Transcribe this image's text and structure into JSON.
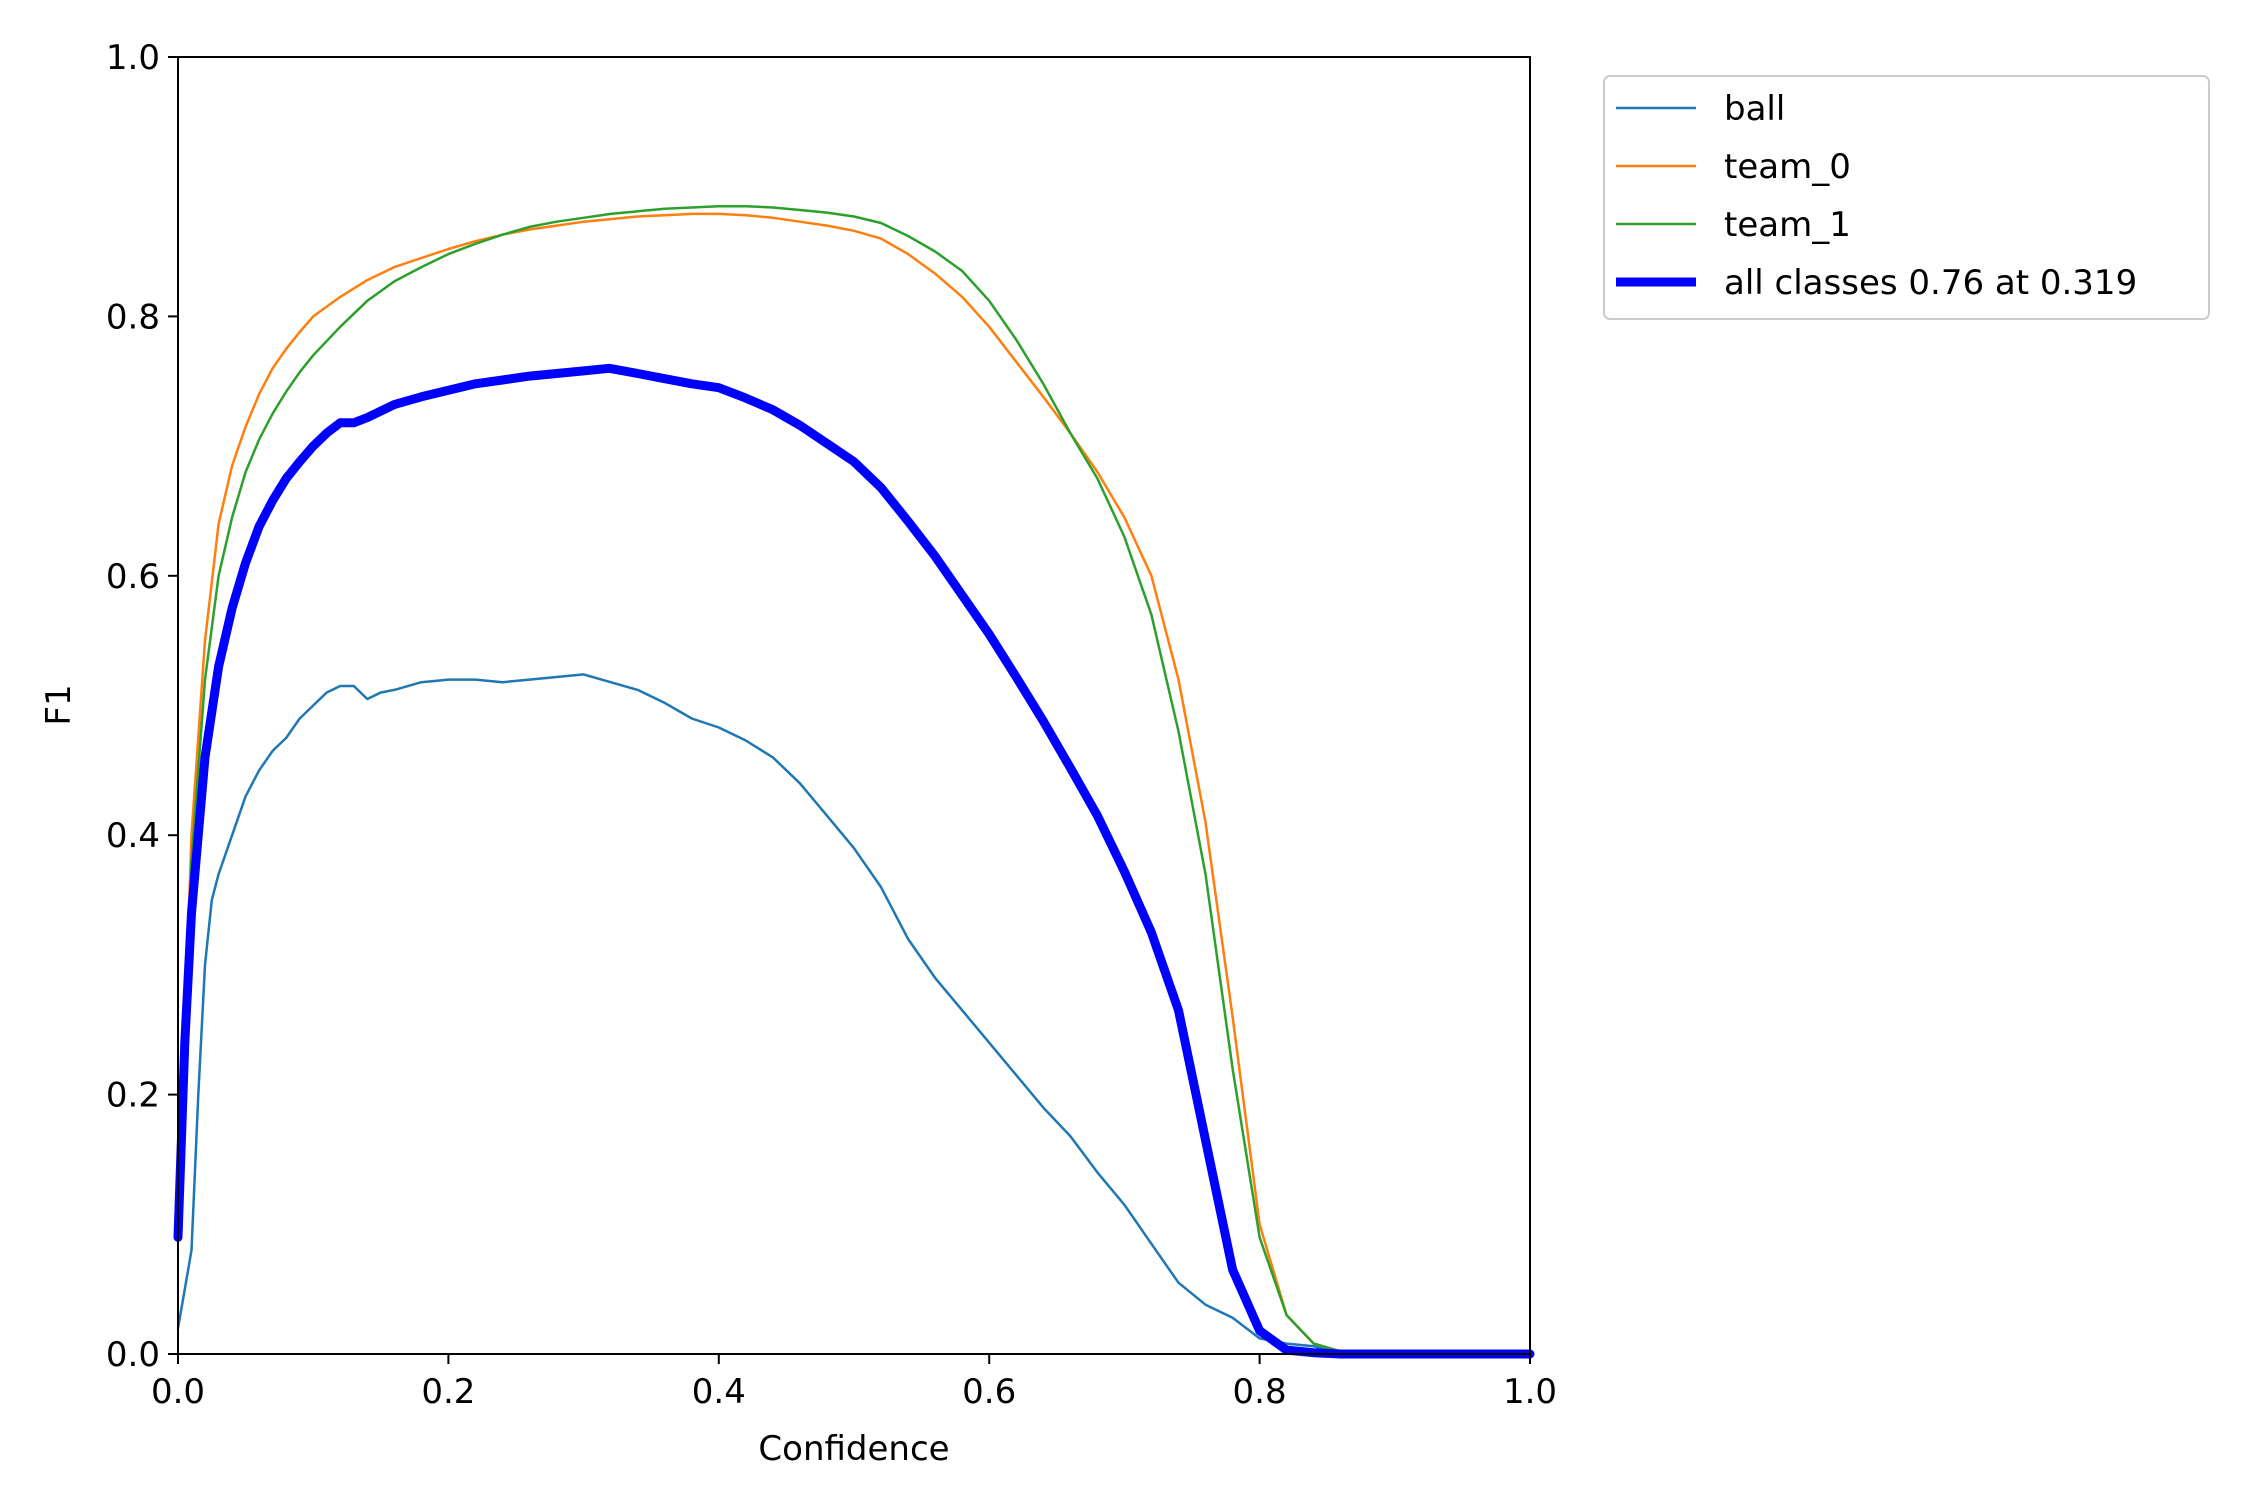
{
  "chart_data": {
    "type": "line",
    "title": "",
    "xlabel": "Confidence",
    "ylabel": "F1",
    "xlim": [
      0.0,
      1.0
    ],
    "ylim": [
      0.0,
      1.0
    ],
    "xticks": [
      "0.0",
      "0.2",
      "0.4",
      "0.6",
      "0.8",
      "1.0"
    ],
    "yticks": [
      "0.0",
      "0.2",
      "0.4",
      "0.6",
      "0.8",
      "1.0"
    ],
    "grid": false,
    "legend_position": "outside upper right",
    "series": [
      {
        "name": "ball",
        "color": "#1f77b4",
        "line_style": "thin",
        "x": [
          0.0,
          0.005,
          0.01,
          0.015,
          0.02,
          0.025,
          0.03,
          0.04,
          0.05,
          0.06,
          0.07,
          0.08,
          0.09,
          0.1,
          0.11,
          0.12,
          0.13,
          0.14,
          0.15,
          0.16,
          0.18,
          0.2,
          0.22,
          0.24,
          0.26,
          0.28,
          0.3,
          0.32,
          0.34,
          0.36,
          0.38,
          0.4,
          0.42,
          0.44,
          0.46,
          0.48,
          0.5,
          0.52,
          0.54,
          0.56,
          0.58,
          0.6,
          0.62,
          0.64,
          0.66,
          0.68,
          0.7,
          0.72,
          0.74,
          0.76,
          0.78,
          0.8,
          0.82,
          0.84,
          0.85,
          0.86,
          0.9,
          1.0
        ],
        "y": [
          0.02,
          0.05,
          0.08,
          0.2,
          0.3,
          0.35,
          0.37,
          0.4,
          0.43,
          0.45,
          0.465,
          0.475,
          0.49,
          0.5,
          0.51,
          0.515,
          0.515,
          0.505,
          0.51,
          0.512,
          0.518,
          0.52,
          0.52,
          0.518,
          0.52,
          0.522,
          0.524,
          0.518,
          0.512,
          0.502,
          0.49,
          0.483,
          0.473,
          0.46,
          0.44,
          0.415,
          0.39,
          0.36,
          0.32,
          0.29,
          0.265,
          0.24,
          0.215,
          0.19,
          0.168,
          0.14,
          0.115,
          0.085,
          0.055,
          0.038,
          0.028,
          0.012,
          0.008,
          0.006,
          0.003,
          0.001,
          0.0,
          0.0
        ]
      },
      {
        "name": "team_0",
        "color": "#ff7f0e",
        "line_style": "thin",
        "x": [
          0.0,
          0.01,
          0.02,
          0.03,
          0.04,
          0.05,
          0.06,
          0.07,
          0.08,
          0.09,
          0.1,
          0.12,
          0.14,
          0.16,
          0.18,
          0.2,
          0.22,
          0.24,
          0.26,
          0.28,
          0.3,
          0.32,
          0.34,
          0.36,
          0.38,
          0.4,
          0.42,
          0.44,
          0.46,
          0.48,
          0.5,
          0.52,
          0.54,
          0.56,
          0.58,
          0.6,
          0.62,
          0.64,
          0.66,
          0.68,
          0.7,
          0.72,
          0.74,
          0.76,
          0.78,
          0.8,
          0.82,
          0.84,
          0.86,
          0.88,
          0.9,
          0.95,
          1.0
        ],
        "y": [
          0.1,
          0.4,
          0.55,
          0.64,
          0.685,
          0.715,
          0.74,
          0.76,
          0.775,
          0.788,
          0.8,
          0.815,
          0.828,
          0.838,
          0.845,
          0.852,
          0.858,
          0.863,
          0.867,
          0.87,
          0.873,
          0.875,
          0.877,
          0.878,
          0.879,
          0.879,
          0.878,
          0.876,
          0.873,
          0.87,
          0.866,
          0.86,
          0.848,
          0.833,
          0.815,
          0.792,
          0.765,
          0.738,
          0.71,
          0.68,
          0.645,
          0.6,
          0.52,
          0.41,
          0.26,
          0.1,
          0.03,
          0.008,
          0.002,
          0.001,
          0.0,
          0.0,
          0.0
        ]
      },
      {
        "name": "team_1",
        "color": "#2ca02c",
        "line_style": "thin",
        "x": [
          0.0,
          0.01,
          0.02,
          0.03,
          0.04,
          0.05,
          0.06,
          0.07,
          0.08,
          0.09,
          0.1,
          0.12,
          0.14,
          0.16,
          0.18,
          0.2,
          0.22,
          0.24,
          0.26,
          0.28,
          0.3,
          0.32,
          0.34,
          0.36,
          0.38,
          0.4,
          0.42,
          0.44,
          0.46,
          0.48,
          0.5,
          0.52,
          0.54,
          0.56,
          0.58,
          0.6,
          0.62,
          0.64,
          0.66,
          0.68,
          0.7,
          0.72,
          0.74,
          0.76,
          0.78,
          0.8,
          0.82,
          0.84,
          0.86,
          0.88,
          0.9,
          0.95,
          1.0
        ],
        "y": [
          0.1,
          0.38,
          0.52,
          0.6,
          0.645,
          0.68,
          0.705,
          0.725,
          0.742,
          0.757,
          0.77,
          0.792,
          0.812,
          0.827,
          0.838,
          0.848,
          0.856,
          0.863,
          0.869,
          0.873,
          0.876,
          0.879,
          0.881,
          0.883,
          0.884,
          0.885,
          0.885,
          0.884,
          0.882,
          0.88,
          0.877,
          0.872,
          0.862,
          0.85,
          0.835,
          0.812,
          0.782,
          0.748,
          0.71,
          0.675,
          0.63,
          0.57,
          0.48,
          0.37,
          0.22,
          0.09,
          0.03,
          0.008,
          0.002,
          0.001,
          0.0,
          0.0,
          0.0
        ]
      },
      {
        "name": "all classes 0.76 at 0.319",
        "color": "#0000ff",
        "line_style": "thick",
        "x": [
          0.0,
          0.005,
          0.01,
          0.02,
          0.03,
          0.04,
          0.05,
          0.06,
          0.07,
          0.08,
          0.09,
          0.1,
          0.11,
          0.12,
          0.13,
          0.14,
          0.16,
          0.18,
          0.2,
          0.22,
          0.24,
          0.26,
          0.28,
          0.3,
          0.319,
          0.34,
          0.36,
          0.38,
          0.4,
          0.42,
          0.44,
          0.46,
          0.48,
          0.5,
          0.52,
          0.54,
          0.56,
          0.58,
          0.6,
          0.62,
          0.64,
          0.66,
          0.68,
          0.7,
          0.72,
          0.74,
          0.76,
          0.78,
          0.8,
          0.82,
          0.84,
          0.86,
          0.88,
          0.9,
          0.95,
          1.0
        ],
        "y": [
          0.09,
          0.24,
          0.34,
          0.46,
          0.53,
          0.575,
          0.61,
          0.638,
          0.658,
          0.675,
          0.688,
          0.7,
          0.71,
          0.718,
          0.718,
          0.722,
          0.732,
          0.738,
          0.743,
          0.748,
          0.751,
          0.754,
          0.756,
          0.758,
          0.76,
          0.756,
          0.752,
          0.748,
          0.745,
          0.737,
          0.728,
          0.716,
          0.702,
          0.688,
          0.668,
          0.642,
          0.615,
          0.585,
          0.555,
          0.522,
          0.488,
          0.452,
          0.415,
          0.372,
          0.325,
          0.265,
          0.165,
          0.065,
          0.018,
          0.003,
          0.001,
          0.0,
          0.0,
          0.0,
          0.0,
          0.0
        ]
      }
    ]
  }
}
